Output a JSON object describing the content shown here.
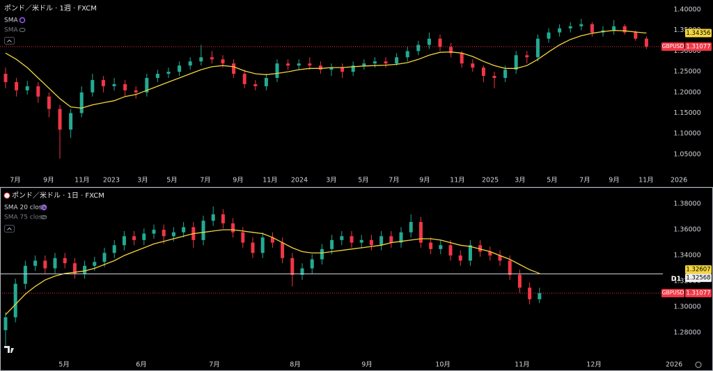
{
  "chart_data": [
    {
      "type": "candlestick",
      "title": "ポンド／米ドル · 1週 · FXCM",
      "symbol": "GBPUSD",
      "up_color": "#22ab94",
      "down_color": "#f23645",
      "open": [
        1.245,
        1.225,
        1.205,
        1.215,
        1.19,
        1.16,
        1.11,
        1.15,
        1.2,
        1.23,
        1.215,
        1.22,
        1.205,
        1.2,
        1.235,
        1.245,
        1.25,
        1.265,
        1.275,
        1.285,
        1.28,
        1.27,
        1.245,
        1.22,
        1.215,
        1.235,
        1.27,
        1.265,
        1.27,
        1.265,
        1.255,
        1.26,
        1.25,
        1.265,
        1.27,
        1.275,
        1.27,
        1.285,
        1.3,
        1.315,
        1.33,
        1.31,
        1.295,
        1.27,
        1.26,
        1.24,
        1.235,
        1.255,
        1.29,
        1.285,
        1.33,
        1.345,
        1.355,
        1.36,
        1.365,
        1.345,
        1.35,
        1.36,
        1.345,
        1.33
      ],
      "high": [
        1.26,
        1.235,
        1.228,
        1.225,
        1.2,
        1.17,
        1.16,
        1.215,
        1.245,
        1.24,
        1.235,
        1.23,
        1.215,
        1.245,
        1.255,
        1.26,
        1.275,
        1.285,
        1.315,
        1.3,
        1.29,
        1.28,
        1.255,
        1.23,
        1.245,
        1.28,
        1.28,
        1.28,
        1.285,
        1.275,
        1.27,
        1.27,
        1.275,
        1.28,
        1.285,
        1.285,
        1.295,
        1.31,
        1.325,
        1.345,
        1.34,
        1.32,
        1.3,
        1.28,
        1.265,
        1.25,
        1.265,
        1.3,
        1.3,
        1.34,
        1.355,
        1.365,
        1.37,
        1.378,
        1.37,
        1.36,
        1.375,
        1.365,
        1.35,
        1.335
      ],
      "low": [
        1.21,
        1.19,
        1.195,
        1.175,
        1.14,
        1.04,
        1.09,
        1.14,
        1.19,
        1.2,
        1.205,
        1.19,
        1.185,
        1.19,
        1.225,
        1.235,
        1.24,
        1.255,
        1.265,
        1.27,
        1.26,
        1.235,
        1.21,
        1.205,
        1.205,
        1.225,
        1.255,
        1.255,
        1.255,
        1.245,
        1.24,
        1.235,
        1.24,
        1.255,
        1.26,
        1.26,
        1.265,
        1.275,
        1.29,
        1.305,
        1.3,
        1.285,
        1.26,
        1.25,
        1.225,
        1.21,
        1.225,
        1.245,
        1.27,
        1.275,
        1.32,
        1.335,
        1.345,
        1.35,
        1.335,
        1.335,
        1.34,
        1.34,
        1.325,
        1.305
      ],
      "close": [
        1.225,
        1.205,
        1.215,
        1.19,
        1.16,
        1.11,
        1.15,
        1.2,
        1.23,
        1.215,
        1.22,
        1.205,
        1.2,
        1.235,
        1.245,
        1.25,
        1.265,
        1.275,
        1.285,
        1.28,
        1.27,
        1.245,
        1.22,
        1.215,
        1.235,
        1.27,
        1.265,
        1.27,
        1.265,
        1.255,
        1.26,
        1.25,
        1.265,
        1.27,
        1.275,
        1.27,
        1.285,
        1.3,
        1.315,
        1.33,
        1.31,
        1.295,
        1.27,
        1.26,
        1.24,
        1.235,
        1.255,
        1.29,
        1.285,
        1.33,
        1.345,
        1.355,
        1.36,
        1.365,
        1.345,
        1.35,
        1.36,
        1.345,
        1.33,
        1.31077
      ],
      "series": [
        {
          "name": "SMA",
          "color": "#f5d63d",
          "values": [
            1.295,
            1.28,
            1.26,
            1.235,
            1.21,
            1.185,
            1.165,
            1.162,
            1.17,
            1.175,
            1.18,
            1.19,
            1.195,
            1.205,
            1.215,
            1.225,
            1.235,
            1.245,
            1.255,
            1.262,
            1.265,
            1.262,
            1.252,
            1.245,
            1.243,
            1.246,
            1.25,
            1.255,
            1.258,
            1.258,
            1.26,
            1.26,
            1.262,
            1.264,
            1.265,
            1.266,
            1.268,
            1.272,
            1.28,
            1.29,
            1.297,
            1.298,
            1.295,
            1.287,
            1.275,
            1.265,
            1.258,
            1.258,
            1.265,
            1.28,
            1.298,
            1.315,
            1.328,
            1.337,
            1.343,
            1.347,
            1.35,
            1.349,
            1.346,
            1.34356
          ]
        }
      ],
      "hidden_indicators": [
        "SMA"
      ],
      "xlim": [
        -0.513,
        64.23
      ],
      "ylim": [
        1.0,
        1.4235
      ],
      "yticks": [
        {
          "value": 1.4,
          "label": "1.40000"
        },
        {
          "value": 1.35,
          "label": "1.35000"
        },
        {
          "value": 1.3,
          "label": "1.30000"
        },
        {
          "value": 1.25,
          "label": "1.25000"
        },
        {
          "value": 1.2,
          "label": "1.20000"
        },
        {
          "value": 1.15,
          "label": "1.15000"
        },
        {
          "value": 1.1,
          "label": "1.10000"
        },
        {
          "value": 1.05,
          "label": "1.05000"
        }
      ],
      "xticks": [
        {
          "value": 0.9,
          "label": "7月"
        },
        {
          "value": 3.97,
          "label": "9月"
        },
        {
          "value": 7.05,
          "label": "11月"
        },
        {
          "value": 9.74,
          "label": "2023"
        },
        {
          "value": 12.63,
          "label": "3月"
        },
        {
          "value": 15.32,
          "label": "5月"
        },
        {
          "value": 18.4,
          "label": "7月"
        },
        {
          "value": 21.41,
          "label": "9月"
        },
        {
          "value": 24.36,
          "label": "11月"
        },
        {
          "value": 27.05,
          "label": "2024"
        },
        {
          "value": 30.0,
          "label": "3月"
        },
        {
          "value": 32.95,
          "label": "5月"
        },
        {
          "value": 35.77,
          "label": "7月"
        },
        {
          "value": 38.59,
          "label": "9月"
        },
        {
          "value": 41.6,
          "label": "11月"
        },
        {
          "value": 44.62,
          "label": "2025"
        },
        {
          "value": 47.37,
          "label": "3月"
        },
        {
          "value": 50.32,
          "label": "5月"
        },
        {
          "value": 53.33,
          "label": "7月"
        },
        {
          "value": 56.03,
          "label": "9月"
        },
        {
          "value": 58.97,
          "label": "11月"
        },
        {
          "value": 61.99,
          "label": "2026"
        }
      ]
    },
    {
      "type": "candlestick",
      "title": "ポンド／米ドル · 1日 · FXCM",
      "symbol": "GBPUSD",
      "up_color": "#22ab94",
      "down_color": "#f23645",
      "open": [
        1.282,
        1.292,
        1.318,
        1.332,
        1.336,
        1.33,
        1.338,
        1.334,
        1.326,
        1.332,
        1.335,
        1.342,
        1.348,
        1.355,
        1.352,
        1.357,
        1.36,
        1.355,
        1.358,
        1.362,
        1.352,
        1.367,
        1.372,
        1.365,
        1.358,
        1.35,
        1.342,
        1.354,
        1.35,
        1.338,
        1.325,
        1.33,
        1.337,
        1.345,
        1.352,
        1.355,
        1.35,
        1.352,
        1.348,
        1.355,
        1.35,
        1.358,
        1.366,
        1.35,
        1.345,
        1.348,
        1.34,
        1.336,
        1.348,
        1.343,
        1.34,
        1.336,
        1.325,
        1.315,
        1.306
      ],
      "high": [
        1.296,
        1.322,
        1.336,
        1.34,
        1.34,
        1.342,
        1.342,
        1.338,
        1.336,
        1.339,
        1.346,
        1.352,
        1.359,
        1.359,
        1.361,
        1.364,
        1.364,
        1.362,
        1.366,
        1.366,
        1.371,
        1.378,
        1.376,
        1.369,
        1.362,
        1.354,
        1.358,
        1.358,
        1.354,
        1.342,
        1.334,
        1.341,
        1.349,
        1.356,
        1.359,
        1.359,
        1.356,
        1.356,
        1.359,
        1.359,
        1.362,
        1.372,
        1.37,
        1.354,
        1.352,
        1.352,
        1.344,
        1.352,
        1.352,
        1.347,
        1.344,
        1.34,
        1.329,
        1.319,
        1.315
      ],
      "low": [
        1.27,
        1.288,
        1.314,
        1.328,
        1.326,
        1.326,
        1.33,
        1.322,
        1.322,
        1.328,
        1.331,
        1.338,
        1.344,
        1.348,
        1.348,
        1.353,
        1.349,
        1.351,
        1.354,
        1.346,
        1.348,
        1.363,
        1.361,
        1.354,
        1.346,
        1.338,
        1.338,
        1.346,
        1.334,
        1.316,
        1.321,
        1.326,
        1.333,
        1.341,
        1.348,
        1.346,
        1.346,
        1.344,
        1.344,
        1.346,
        1.346,
        1.354,
        1.346,
        1.341,
        1.341,
        1.336,
        1.332,
        1.332,
        1.339,
        1.336,
        1.332,
        1.321,
        1.311,
        1.302,
        1.303
      ],
      "close": [
        1.292,
        1.318,
        1.332,
        1.336,
        1.33,
        1.338,
        1.334,
        1.326,
        1.332,
        1.335,
        1.342,
        1.348,
        1.355,
        1.352,
        1.357,
        1.36,
        1.355,
        1.358,
        1.362,
        1.352,
        1.367,
        1.372,
        1.365,
        1.358,
        1.35,
        1.342,
        1.354,
        1.35,
        1.338,
        1.325,
        1.33,
        1.337,
        1.345,
        1.352,
        1.355,
        1.35,
        1.352,
        1.348,
        1.355,
        1.35,
        1.358,
        1.366,
        1.35,
        1.345,
        1.348,
        1.34,
        1.336,
        1.348,
        1.343,
        1.34,
        1.336,
        1.325,
        1.315,
        1.306,
        1.31077
      ],
      "series": [
        {
          "name": "SMA 20 close",
          "color": "#f5d63d",
          "values": [
            1.294,
            1.302,
            1.31,
            1.316,
            1.321,
            1.324,
            1.326,
            1.327,
            1.328,
            1.33,
            1.333,
            1.336,
            1.34,
            1.343,
            1.346,
            1.349,
            1.351,
            1.353,
            1.355,
            1.357,
            1.358,
            1.359,
            1.36,
            1.36,
            1.359,
            1.358,
            1.357,
            1.354,
            1.35,
            1.346,
            1.343,
            1.342,
            1.342,
            1.343,
            1.344,
            1.345,
            1.346,
            1.347,
            1.348,
            1.35,
            1.351,
            1.352,
            1.353,
            1.353,
            1.352,
            1.35,
            1.348,
            1.347,
            1.345,
            1.343,
            1.34,
            1.337,
            1.333,
            1.329,
            1.32607
          ]
        }
      ],
      "hidden_indicators": [
        "SMA 75 close"
      ],
      "hline": {
        "value": 1.32568,
        "label": "D1"
      },
      "xlim": [
        -0.563,
        70.56
      ],
      "ylim": [
        1.26,
        1.3914
      ],
      "yticks": [
        {
          "value": 1.38,
          "label": "1.38000"
        },
        {
          "value": 1.36,
          "label": "1.36000"
        },
        {
          "value": 1.34,
          "label": "1.34000"
        },
        {
          "value": 1.32,
          "label": "1.32000"
        },
        {
          "value": 1.3,
          "label": "1.30000"
        },
        {
          "value": 1.28,
          "label": "1.28000"
        }
      ],
      "xticks": [
        {
          "value": 5.92,
          "label": "5月"
        },
        {
          "value": 13.73,
          "label": "6月"
        },
        {
          "value": 21.13,
          "label": "7月"
        },
        {
          "value": 29.3,
          "label": "8月"
        },
        {
          "value": 36.55,
          "label": "9月"
        },
        {
          "value": 44.23,
          "label": "10月"
        },
        {
          "value": 52.25,
          "label": "11月"
        },
        {
          "value": 59.51,
          "label": "12月"
        },
        {
          "value": 67.61,
          "label": "2026"
        }
      ]
    }
  ]
}
